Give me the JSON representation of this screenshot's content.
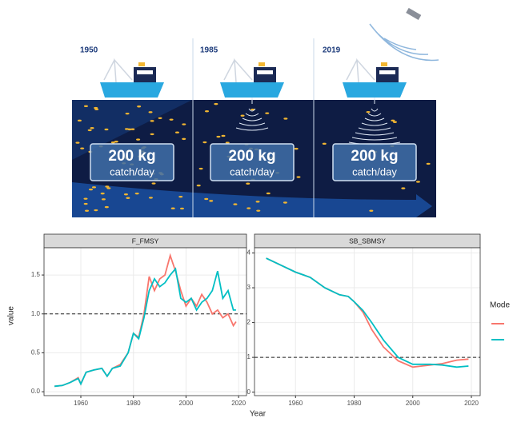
{
  "illustration": {
    "years": [
      "1950",
      "1985",
      "2019"
    ],
    "panels": [
      {
        "amount": "200 kg",
        "unit": "catch/day"
      },
      {
        "amount": "200 kg",
        "unit": "catch/day"
      },
      {
        "amount": "200 kg",
        "unit": "catch/day"
      }
    ]
  },
  "shared": {
    "x_label": "Year",
    "y_label": "value",
    "legend_title": "Mode"
  },
  "chart_data": [
    {
      "type": "line",
      "title": "F_FMSY",
      "x": [
        1950,
        1953,
        1956,
        1959,
        1960,
        1962,
        1965,
        1968,
        1970,
        1972,
        1975,
        1978,
        1980,
        1982,
        1984,
        1986,
        1988,
        1990,
        1992,
        1994,
        1996,
        1998,
        2000,
        2002,
        2004,
        2006,
        2008,
        2010,
        2012,
        2014,
        2016,
        2018,
        2019
      ],
      "series": [
        {
          "color": "#f8766d",
          "values": [
            0.07,
            0.08,
            0.12,
            0.18,
            0.1,
            0.25,
            0.28,
            0.3,
            0.2,
            0.3,
            0.35,
            0.5,
            0.75,
            0.7,
            1.0,
            1.48,
            1.3,
            1.45,
            1.5,
            1.75,
            1.55,
            1.3,
            1.1,
            1.2,
            1.1,
            1.25,
            1.15,
            1.0,
            1.05,
            0.95,
            1.0,
            0.85,
            0.9
          ]
        },
        {
          "color": "#00bfc4",
          "values": [
            0.07,
            0.08,
            0.12,
            0.17,
            0.1,
            0.25,
            0.28,
            0.3,
            0.2,
            0.3,
            0.33,
            0.5,
            0.75,
            0.68,
            0.95,
            1.3,
            1.45,
            1.35,
            1.4,
            1.5,
            1.58,
            1.2,
            1.15,
            1.2,
            1.05,
            1.15,
            1.2,
            1.3,
            1.55,
            1.2,
            1.3,
            1.05,
            1.05
          ]
        }
      ],
      "xlim": [
        1946,
        2023
      ],
      "xticks": [
        1960,
        1980,
        2000,
        2020
      ],
      "ylim": [
        -0.05,
        1.85
      ],
      "yticks": [
        {
          "value": 0,
          "label": "0.0"
        },
        0.5,
        {
          "value": 1,
          "label": "1.0"
        },
        1.5
      ],
      "hline": 1,
      "grid": true
    },
    {
      "type": "line",
      "title": "SB_SBMSY",
      "x": [
        1950,
        1955,
        1960,
        1965,
        1970,
        1975,
        1978,
        1980,
        1983,
        1986,
        1990,
        1995,
        2000,
        2003,
        2006,
        2010,
        2015,
        2019
      ],
      "series": [
        {
          "color": "#f8766d",
          "values": [
            3.85,
            3.65,
            3.45,
            3.3,
            3.0,
            2.8,
            2.75,
            2.6,
            2.3,
            1.8,
            1.3,
            0.9,
            0.72,
            0.75,
            0.78,
            0.82,
            0.92,
            0.95
          ]
        },
        {
          "color": "#00bfc4",
          "values": [
            3.85,
            3.65,
            3.45,
            3.3,
            3.0,
            2.8,
            2.75,
            2.6,
            2.35,
            2.0,
            1.5,
            1.0,
            0.8,
            0.8,
            0.8,
            0.78,
            0.72,
            0.75
          ]
        }
      ],
      "xlim": [
        1946,
        2023
      ],
      "xticks": [
        1960,
        1980,
        2000,
        2020
      ],
      "ylim": [
        -0.1,
        4.15
      ],
      "yticks": [
        0,
        1,
        2,
        3,
        4
      ],
      "hline": 1,
      "grid": true
    }
  ]
}
